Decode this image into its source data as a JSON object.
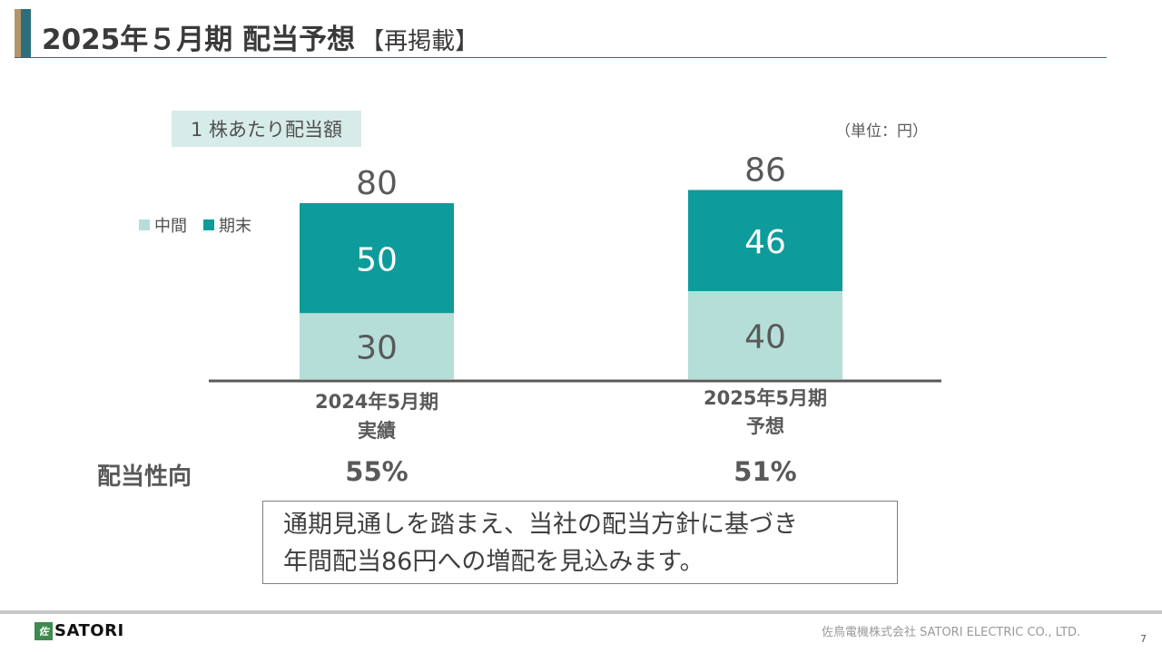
{
  "header": {
    "title": "2025年５月期 配当予想",
    "title_note": "【再掲載】"
  },
  "chart_header": {
    "subtitle": "1 株あたり配当額",
    "unit": "（単位：円）"
  },
  "chart_data": {
    "type": "bar",
    "stacked": true,
    "categories": [
      "2024年5月期\n実績",
      "2025年5月期\n予想"
    ],
    "series": [
      {
        "name": "中間",
        "values": [
          30,
          40
        ],
        "color": "#b5ded8"
      },
      {
        "name": "期末",
        "values": [
          50,
          46
        ],
        "color": "#0e9b9b"
      }
    ],
    "totals": [
      80,
      86
    ],
    "title": "1 株あたり配当額",
    "unit": "（単位：円）",
    "legend_position": "left",
    "grid": false
  },
  "category_labels": [
    {
      "line1": "2024年5月期",
      "line2": "実績"
    },
    {
      "line1": "2025年5月期",
      "line2": "予想"
    }
  ],
  "payout": {
    "label": "配当性向",
    "values": [
      "55%",
      "51%"
    ]
  },
  "message": {
    "line1": "通期見通しを踏まえ、当社の配当方針に基づき",
    "line2": "年間配当86円への増配を見込みます。"
  },
  "footer": {
    "logo_mark": "佐",
    "logo_text": "SATORI",
    "company": "佐鳥電機株式会社  SATORI ELECTRIC CO., LTD.",
    "page": "7"
  },
  "colors": {
    "accent": "#2b6f7a",
    "accent_tan": "#b5946b",
    "interim": "#b5ded8",
    "year_end": "#0e9b9b"
  }
}
